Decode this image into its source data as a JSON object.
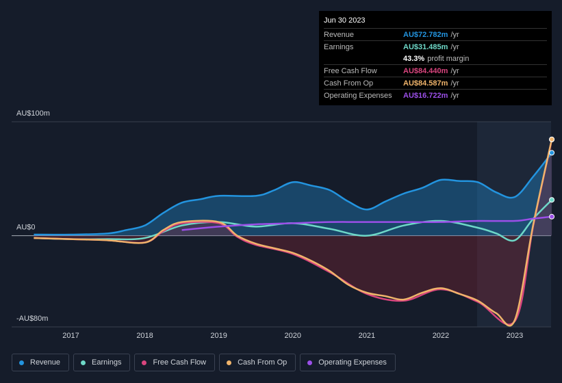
{
  "chart_data": {
    "type": "line",
    "xlim": [
      2016.2,
      2023.49
    ],
    "xticks": [
      2017,
      2018,
      2019,
      2020,
      2021,
      2022,
      2023
    ],
    "ylim": [
      -80,
      100
    ],
    "yticks": [
      {
        "value": 100,
        "label": "AU$100m"
      },
      {
        "value": 0,
        "label": "AU$0"
      },
      {
        "value": -80,
        "label": "-AU$80m"
      }
    ],
    "series": [
      {
        "name": "Revenue",
        "color": "#2394df",
        "area": true,
        "area_color": "#2394df",
        "x": [
          2016.5,
          2017.0,
          2017.5,
          2017.75,
          2018.0,
          2018.25,
          2018.5,
          2018.75,
          2019.0,
          2019.5,
          2019.75,
          2020.0,
          2020.25,
          2020.5,
          2020.75,
          2021.0,
          2021.25,
          2021.5,
          2021.75,
          2022.0,
          2022.25,
          2022.5,
          2022.75,
          2023.0,
          2023.25,
          2023.5
        ],
        "values": [
          1,
          1,
          2,
          5,
          9,
          20,
          29,
          32,
          35,
          35,
          40,
          47,
          44,
          40,
          30,
          23,
          30,
          37,
          42,
          49,
          48,
          47,
          38,
          34,
          52,
          72.782
        ]
      },
      {
        "name": "Earnings",
        "color": "#6ed8c8",
        "x": [
          2016.5,
          2017.0,
          2017.5,
          2018.0,
          2018.5,
          2019.0,
          2019.5,
          2020.0,
          2020.5,
          2021.0,
          2021.5,
          2022.0,
          2022.5,
          2022.75,
          2023.0,
          2023.25,
          2023.5
        ],
        "values": [
          -2,
          -3,
          -3,
          -2,
          9,
          12,
          8,
          11,
          6,
          0,
          9,
          13,
          7,
          2,
          -4,
          15,
          31.485
        ]
      },
      {
        "name": "Free Cash Flow",
        "color": "#d9457e",
        "x": [
          2016.5,
          2017.0,
          2017.5,
          2018.0,
          2018.25,
          2018.5,
          2019.0,
          2019.25,
          2019.5,
          2020.0,
          2020.5,
          2021.0,
          2021.5,
          2022.0,
          2022.5,
          2023.0,
          2023.25,
          2023.5
        ],
        "values": [
          -2,
          -3,
          -4,
          -6,
          4,
          11,
          11,
          -1,
          -8,
          -16,
          -32,
          -51,
          -57,
          -47,
          -58,
          -75,
          9,
          84.44
        ]
      },
      {
        "name": "Cash From Op",
        "color": "#f0b46b",
        "area": true,
        "area_color": "#8a2634",
        "x": [
          2016.5,
          2017.0,
          2017.5,
          2018.0,
          2018.25,
          2018.5,
          2019.0,
          2019.25,
          2019.5,
          2019.75,
          2020.0,
          2020.25,
          2020.5,
          2020.75,
          2021.0,
          2021.25,
          2021.5,
          2021.75,
          2022.0,
          2022.25,
          2022.5,
          2022.75,
          2023.0,
          2023.25,
          2023.5
        ],
        "values": [
          -2,
          -3,
          -4,
          -6,
          5,
          12,
          12,
          0,
          -7,
          -11,
          -15,
          -22,
          -31,
          -43,
          -50,
          -53,
          -56,
          -50,
          -46,
          -51,
          -57,
          -68,
          -74,
          10,
          84.587
        ]
      },
      {
        "name": "Operating Expenses",
        "color": "#9b4fe8",
        "x": [
          2018.5,
          2019.0,
          2019.5,
          2020.0,
          2020.5,
          2021.0,
          2021.5,
          2022.0,
          2022.5,
          2023.0,
          2023.25,
          2023.5
        ],
        "values": [
          5,
          8,
          10,
          11,
          12,
          12,
          12,
          12,
          13,
          13,
          15,
          16.722
        ]
      }
    ]
  },
  "tooltip": {
    "date": "Jun 30 2023",
    "rows": [
      {
        "label": "Revenue",
        "value": "AU$72.782m",
        "unit": "/yr",
        "color": "#2394df"
      },
      {
        "label": "Earnings",
        "value": "AU$31.485m",
        "unit": "/yr",
        "color": "#6ed8c8"
      },
      {
        "label": "",
        "value": "43.3%",
        "unit": "profit margin",
        "color": "#ffffff"
      },
      {
        "label": "Free Cash Flow",
        "value": "AU$84.440m",
        "unit": "/yr",
        "color": "#d9457e"
      },
      {
        "label": "Cash From Op",
        "value": "AU$84.587m",
        "unit": "/yr",
        "color": "#f0b46b"
      },
      {
        "label": "Operating Expenses",
        "value": "AU$16.722m",
        "unit": "/yr",
        "color": "#9b4fe8"
      }
    ]
  }
}
